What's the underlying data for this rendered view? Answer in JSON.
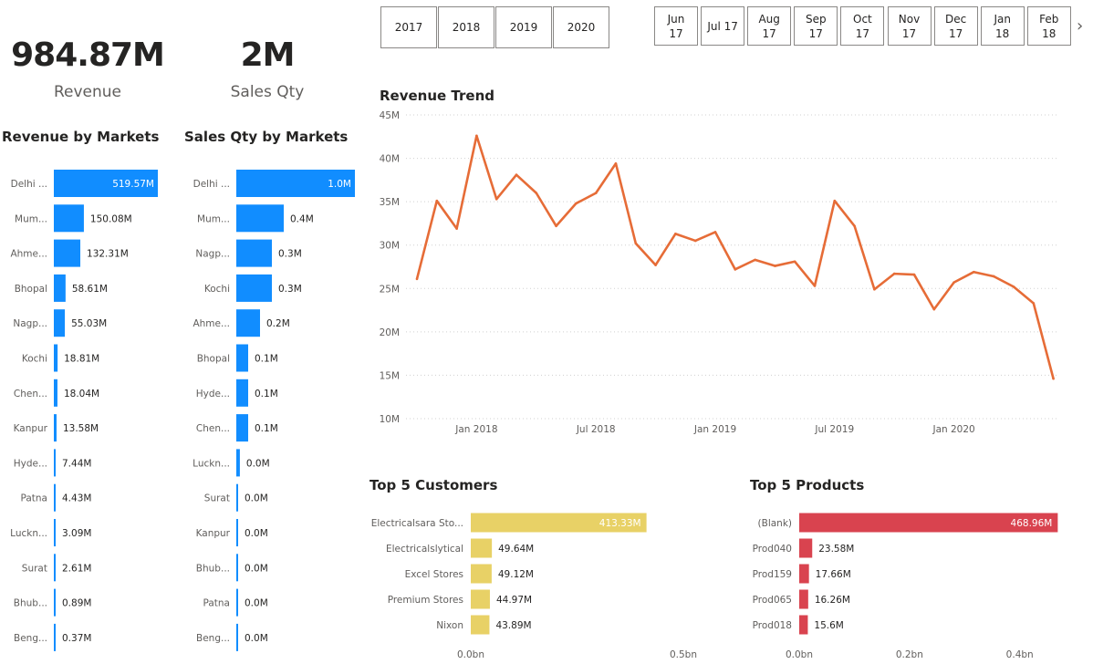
{
  "year_slicer": [
    "2017",
    "2018",
    "2019",
    "2020"
  ],
  "month_slicer": [
    [
      "Jun",
      "17"
    ],
    [
      "Jul 17",
      ""
    ],
    [
      "Aug",
      "17"
    ],
    [
      "Sep",
      "17"
    ],
    [
      "Oct",
      "17"
    ],
    [
      "Nov",
      "17"
    ],
    [
      "Dec",
      "17"
    ],
    [
      "Jan",
      "18"
    ],
    [
      "Feb",
      "18"
    ]
  ],
  "kpis": {
    "revenue": {
      "value": "984.87M",
      "label": "Revenue"
    },
    "sales_qty": {
      "value": "2M",
      "label": "Sales Qty"
    }
  },
  "titles": {
    "revenue_by_markets": "Revenue by Markets",
    "qty_by_markets": "Sales Qty by Markets",
    "revenue_trend": "Revenue Trend",
    "top_customers": "Top 5 Customers",
    "top_products": "Top 5 Products"
  },
  "colors": {
    "market_bar": "#118DFF",
    "trend_line": "#E66C37",
    "customer_bar": "#E8D166",
    "product_bar": "#D9434F"
  },
  "chart_data": [
    {
      "id": "revenue_by_markets",
      "type": "bar",
      "orientation": "horizontal",
      "categories": [
        "Delhi ...",
        "Mum...",
        "Ahme...",
        "Bhopal",
        "Nagp...",
        "Kochi",
        "Chen...",
        "Kanpur",
        "Hyde...",
        "Patna",
        "Luckn...",
        "Surat",
        "Bhub...",
        "Beng..."
      ],
      "values": [
        519.57,
        150.08,
        132.31,
        58.61,
        55.03,
        18.81,
        18.04,
        13.58,
        7.44,
        4.43,
        3.09,
        2.61,
        0.89,
        0.37
      ],
      "labels": [
        "519.57M",
        "150.08M",
        "132.31M",
        "58.61M",
        "55.03M",
        "18.81M",
        "18.04M",
        "13.58M",
        "7.44M",
        "4.43M",
        "3.09M",
        "2.61M",
        "0.89M",
        "0.37M"
      ],
      "unit": "M"
    },
    {
      "id": "qty_by_markets",
      "type": "bar",
      "orientation": "horizontal",
      "categories": [
        "Delhi ...",
        "Mum...",
        "Nagp...",
        "Kochi",
        "Ahme...",
        "Bhopal",
        "Hyde...",
        "Chen...",
        "Luckn...",
        "Surat",
        "Kanpur",
        "Bhub...",
        "Patna",
        "Beng..."
      ],
      "values": [
        1.0,
        0.4,
        0.3,
        0.3,
        0.2,
        0.1,
        0.1,
        0.1,
        0.03,
        0.01,
        0.01,
        0.01,
        0.01,
        0.01
      ],
      "labels": [
        "1.0M",
        "0.4M",
        "0.3M",
        "0.3M",
        "0.2M",
        "0.1M",
        "0.1M",
        "0.1M",
        "0.0M",
        "0.0M",
        "0.0M",
        "0.0M",
        "0.0M",
        "0.0M"
      ],
      "unit": "M"
    },
    {
      "id": "revenue_trend",
      "type": "line",
      "x": [
        "2017-10",
        "2017-11",
        "2017-12",
        "2018-01",
        "2018-02",
        "2018-03",
        "2018-04",
        "2018-05",
        "2018-06",
        "2018-07",
        "2018-08",
        "2018-09",
        "2018-10",
        "2018-11",
        "2018-12",
        "2019-01",
        "2019-02",
        "2019-03",
        "2019-04",
        "2019-05",
        "2019-06",
        "2019-07",
        "2019-08",
        "2019-09",
        "2019-10",
        "2019-11",
        "2019-12",
        "2020-01",
        "2020-02",
        "2020-03",
        "2020-04",
        "2020-05",
        "2020-06"
      ],
      "y": [
        26.1,
        35.1,
        31.9,
        42.6,
        35.3,
        38.1,
        36.0,
        32.2,
        34.8,
        36.0,
        39.4,
        30.2,
        27.7,
        31.3,
        30.5,
        31.5,
        27.2,
        28.3,
        27.6,
        28.1,
        25.3,
        35.1,
        32.2,
        24.9,
        26.7,
        26.6,
        22.6,
        25.7,
        26.9,
        26.4,
        25.2,
        23.3,
        14.6
      ],
      "yticks": [
        "10M",
        "15M",
        "20M",
        "25M",
        "30M",
        "35M",
        "40M",
        "45M"
      ],
      "ylim": [
        10,
        45
      ],
      "xticks": [
        "Jan 2018",
        "Jul 2018",
        "Jan 2019",
        "Jul 2019",
        "Jan 2020"
      ],
      "grid": true
    },
    {
      "id": "top_customers",
      "type": "bar",
      "orientation": "horizontal",
      "categories": [
        "Electricalsara Sto...",
        "Electricalslytical",
        "Excel Stores",
        "Premium Stores",
        "Nixon"
      ],
      "values": [
        413.33,
        49.64,
        49.12,
        44.97,
        43.89
      ],
      "labels": [
        "413.33M",
        "49.64M",
        "49.12M",
        "44.97M",
        "43.89M"
      ],
      "xticks": [
        "0.0bn",
        "0.5bn"
      ],
      "xlim": [
        0,
        500
      ]
    },
    {
      "id": "top_products",
      "type": "bar",
      "orientation": "horizontal",
      "categories": [
        "(Blank)",
        "Prod040",
        "Prod159",
        "Prod065",
        "Prod018"
      ],
      "values": [
        468.96,
        23.58,
        17.66,
        16.26,
        15.6
      ],
      "labels": [
        "468.96M",
        "23.58M",
        "17.66M",
        "16.26M",
        "15.6M"
      ],
      "xticks": [
        "0.0bn",
        "0.2bn",
        "0.4bn"
      ],
      "xlim": [
        0,
        470
      ]
    }
  ]
}
